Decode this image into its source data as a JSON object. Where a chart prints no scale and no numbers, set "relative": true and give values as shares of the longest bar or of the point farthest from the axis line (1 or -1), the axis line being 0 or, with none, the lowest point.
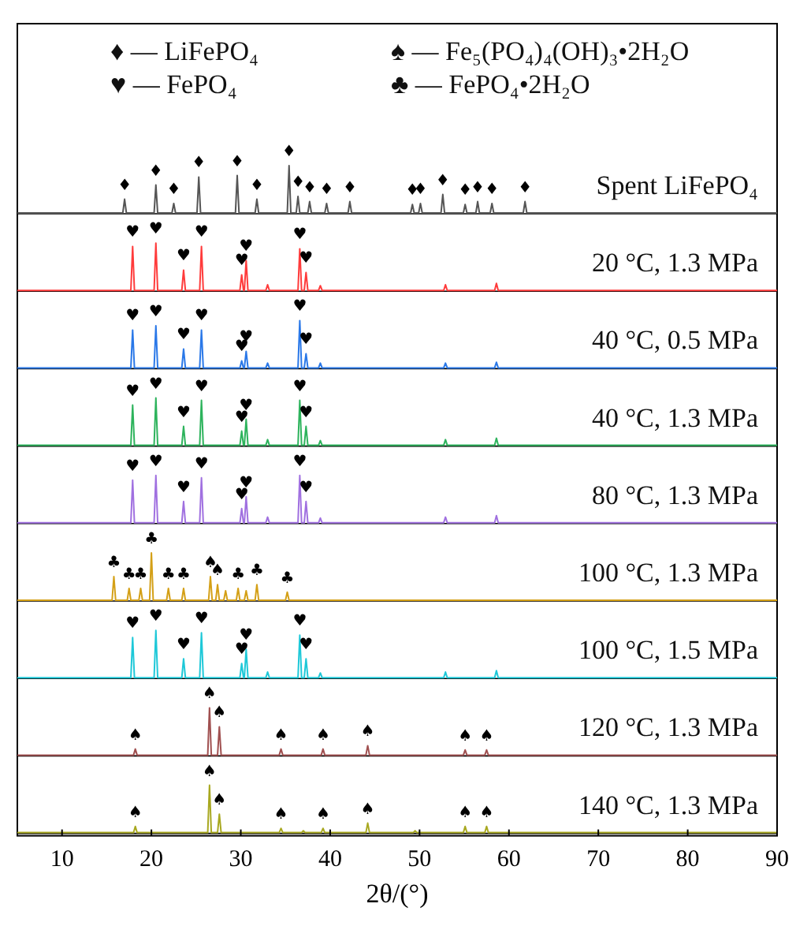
{
  "chart_data": [
    {
      "type": "line",
      "relative": true,
      "xlim": [
        5,
        90
      ],
      "tick_labels": false,
      "series": [
        {
          "name": "Spent LiFePO₄",
          "color": "#555555",
          "x": [
            5,
            16.8,
            17,
            17.2,
            20.3,
            20.5,
            20.7,
            22.3,
            22.5,
            22.7,
            25.1,
            25.3,
            25.5,
            29.4,
            29.6,
            29.8,
            31.6,
            31.8,
            32,
            35.2,
            35.4,
            35.6,
            36.2,
            36.4,
            36.6,
            37.5,
            37.7,
            37.9,
            39.4,
            39.6,
            39.8,
            42,
            42.2,
            42.4,
            49,
            49.2,
            49.4,
            49.9,
            50.1,
            50.3,
            52.4,
            52.6,
            52.8,
            54.9,
            55.1,
            55.3,
            56.3,
            56.5,
            56.7,
            57.9,
            58.1,
            58.3,
            61.6,
            61.8,
            62,
            90
          ],
          "values": [
            0,
            0,
            0.29,
            0,
            0,
            0.59,
            0,
            0,
            0.2,
            0,
            0,
            0.76,
            0,
            0,
            0.79,
            0,
            0,
            0.29,
            0,
            0,
            1,
            0,
            0,
            0.35,
            0,
            0,
            0.24,
            0,
            0,
            0.2,
            0,
            0,
            0.24,
            0,
            0,
            0.18,
            0,
            0,
            0.2,
            0,
            0,
            0.39,
            0,
            0,
            0.18,
            0,
            0,
            0.24,
            0,
            0,
            0.2,
            0,
            0,
            0.24,
            0,
            0
          ]
        }
      ],
      "annotations": [
        "♦ — LiFePO₄",
        "♠ — Fe₅(PO₄)₄(OH)₃•2H₂O",
        "♥ — FePO₄",
        "♣ — FePO₄•2H₂O",
        {
          "text": "♦",
          "x": 17,
          "y": 0.29
        },
        {
          "text": "♦",
          "x": 20.5,
          "y": 0.59
        },
        {
          "text": "♦",
          "x": 22.5,
          "y": 0.2
        },
        {
          "text": "♦",
          "x": 25.3,
          "y": 0.76
        },
        {
          "text": "♦",
          "x": 29.6,
          "y": 0.79
        },
        {
          "text": "♦",
          "x": 31.8,
          "y": 0.29
        },
        {
          "text": "♦",
          "x": 35.4,
          "y": 1
        },
        {
          "text": "♦",
          "x": 36.4,
          "y": 0.35
        },
        {
          "text": "♦",
          "x": 37.7,
          "y": 0.24
        },
        {
          "text": "♦",
          "x": 39.6,
          "y": 0.2
        },
        {
          "text": "♦",
          "x": 42.2,
          "y": 0.24
        },
        {
          "text": "♦",
          "x": 49.2,
          "y": 0.18
        },
        {
          "text": "♦",
          "x": 50.1,
          "y": 0.2
        },
        {
          "text": "♦",
          "x": 52.6,
          "y": 0.39
        },
        {
          "text": "♦",
          "x": 55.1,
          "y": 0.18
        },
        {
          "text": "♦",
          "x": 56.5,
          "y": 0.24
        },
        {
          "text": "♦",
          "x": 58.1,
          "y": 0.2
        },
        {
          "text": "♦",
          "x": 61.8,
          "y": 0.24
        }
      ]
    },
    {
      "type": "line",
      "relative": true,
      "xlim": [
        5,
        90
      ],
      "tick_labels": false,
      "series": [
        {
          "name": "20 °C, 1.3 MPa",
          "color": "#ff3b3b",
          "x": [
            5,
            17.7,
            17.9,
            18.1,
            20.3,
            20.5,
            20.7,
            23.4,
            23.6,
            23.8,
            25.4,
            25.6,
            25.8,
            29.9,
            30.1,
            30.3,
            30.4,
            30.6,
            30.8,
            32.8,
            33,
            33.2,
            36.4,
            36.6,
            36.8,
            37.1,
            37.3,
            37.5,
            38.7,
            38.9,
            39.1,
            52.7,
            52.9,
            53.1,
            58.4,
            58.6,
            58.8,
            90
          ],
          "values": [
            0,
            0,
            0.93,
            0,
            0,
            1,
            0,
            0,
            0.43,
            0,
            0,
            0.93,
            0,
            0,
            0.33,
            0,
            0,
            0.63,
            0,
            0,
            0.12,
            0,
            0,
            0.88,
            0,
            0,
            0.38,
            0,
            0,
            0.1,
            0,
            0,
            0.12,
            0,
            0,
            0.15,
            0,
            0
          ]
        }
      ],
      "annotations": [
        {
          "text": "♥",
          "x": 17.9,
          "y": 0.93
        },
        {
          "text": "♥",
          "x": 20.5,
          "y": 1
        },
        {
          "text": "♥",
          "x": 23.6,
          "y": 0.43
        },
        {
          "text": "♥",
          "x": 25.6,
          "y": 0.93
        },
        {
          "text": "♥",
          "x": 30.1,
          "y": 0.33
        },
        {
          "text": "♥",
          "x": 30.6,
          "y": 0.63
        },
        {
          "text": "♥",
          "x": 36.6,
          "y": 0.88
        },
        {
          "text": "♥",
          "x": 37.3,
          "y": 0.38
        }
      ]
    },
    {
      "type": "line",
      "relative": true,
      "xlim": [
        5,
        90
      ],
      "tick_labels": false,
      "series": [
        {
          "name": "40 °C, 0.5 MPa",
          "color": "#2a78e8",
          "x": [
            5,
            17.7,
            17.9,
            18.1,
            20.3,
            20.5,
            20.7,
            23.4,
            23.6,
            23.8,
            25.4,
            25.6,
            25.8,
            29.9,
            30.1,
            30.3,
            30.4,
            30.6,
            30.8,
            32.8,
            33,
            33.2,
            36.4,
            36.6,
            36.8,
            37.1,
            37.3,
            37.5,
            38.7,
            38.9,
            39.1,
            52.7,
            52.9,
            53.1,
            58.4,
            58.6,
            58.8,
            90
          ],
          "values": [
            0,
            0,
            0.8,
            0,
            0,
            0.89,
            0,
            0,
            0.4,
            0,
            0,
            0.8,
            0,
            0,
            0.15,
            0,
            0,
            0.35,
            0,
            0,
            0.1,
            0,
            0,
            1,
            0,
            0,
            0.3,
            0,
            0,
            0.1,
            0,
            0,
            0.1,
            0,
            0,
            0.12,
            0,
            0
          ]
        }
      ],
      "annotations": [
        {
          "text": "♥",
          "x": 17.9,
          "y": 0.8
        },
        {
          "text": "♥",
          "x": 20.5,
          "y": 0.89
        },
        {
          "text": "♥",
          "x": 23.6,
          "y": 0.4
        },
        {
          "text": "♥",
          "x": 25.6,
          "y": 0.8
        },
        {
          "text": "♥",
          "x": 30.1,
          "y": 0.15
        },
        {
          "text": "♥",
          "x": 30.6,
          "y": 0.35
        },
        {
          "text": "♥",
          "x": 36.6,
          "y": 1
        },
        {
          "text": "♥",
          "x": 37.3,
          "y": 0.3
        }
      ]
    },
    {
      "type": "line",
      "relative": true,
      "xlim": [
        5,
        90
      ],
      "tick_labels": false,
      "series": [
        {
          "name": "40 °C, 1.3 MPa",
          "color": "#2db35c",
          "x": [
            5,
            17.7,
            17.9,
            18.1,
            20.3,
            20.5,
            20.7,
            23.4,
            23.6,
            23.8,
            25.4,
            25.6,
            25.8,
            29.9,
            30.1,
            30.3,
            30.4,
            30.6,
            30.8,
            32.8,
            33,
            33.2,
            36.4,
            36.6,
            36.8,
            37.1,
            37.3,
            37.5,
            38.7,
            38.9,
            39.1,
            52.7,
            52.9,
            53.1,
            58.4,
            58.6,
            58.8,
            90
          ],
          "values": [
            0,
            0,
            0.85,
            0,
            0,
            1,
            0,
            0,
            0.4,
            0,
            0,
            0.95,
            0,
            0,
            0.3,
            0,
            0,
            0.55,
            0,
            0,
            0.12,
            0,
            0,
            0.95,
            0,
            0,
            0.4,
            0,
            0,
            0.1,
            0,
            0,
            0.12,
            0,
            0,
            0.15,
            0,
            0
          ]
        }
      ],
      "annotations": [
        {
          "text": "♥",
          "x": 17.9,
          "y": 0.85
        },
        {
          "text": "♥",
          "x": 20.5,
          "y": 1
        },
        {
          "text": "♥",
          "x": 23.6,
          "y": 0.4
        },
        {
          "text": "♥",
          "x": 25.6,
          "y": 0.95
        },
        {
          "text": "♥",
          "x": 30.1,
          "y": 0.3
        },
        {
          "text": "♥",
          "x": 30.6,
          "y": 0.55
        },
        {
          "text": "♥",
          "x": 36.6,
          "y": 0.95
        },
        {
          "text": "♥",
          "x": 37.3,
          "y": 0.4
        }
      ]
    },
    {
      "type": "line",
      "relative": true,
      "xlim": [
        5,
        90
      ],
      "tick_labels": false,
      "series": [
        {
          "name": "80 °C, 1.3 MPa",
          "color": "#a070e0",
          "x": [
            5,
            17.7,
            17.9,
            18.1,
            20.3,
            20.5,
            20.7,
            23.4,
            23.6,
            23.8,
            25.4,
            25.6,
            25.8,
            29.9,
            30.1,
            30.3,
            30.4,
            30.6,
            30.8,
            32.8,
            33,
            33.2,
            36.4,
            36.6,
            36.8,
            37.1,
            37.3,
            37.5,
            38.7,
            38.9,
            39.1,
            52.7,
            52.9,
            53.1,
            58.4,
            58.6,
            58.8,
            90
          ],
          "values": [
            0,
            0,
            0.9,
            0,
            0,
            1,
            0,
            0,
            0.45,
            0,
            0,
            0.95,
            0,
            0,
            0.3,
            0,
            0,
            0.55,
            0,
            0,
            0.12,
            0,
            0,
            1,
            0,
            0,
            0.45,
            0,
            0,
            0.1,
            0,
            0,
            0.12,
            0,
            0,
            0.15,
            0,
            0
          ]
        }
      ],
      "annotations": [
        {
          "text": "♥",
          "x": 17.9,
          "y": 0.9
        },
        {
          "text": "♥",
          "x": 20.5,
          "y": 1
        },
        {
          "text": "♥",
          "x": 23.6,
          "y": 0.45
        },
        {
          "text": "♥",
          "x": 25.6,
          "y": 0.95
        },
        {
          "text": "♥",
          "x": 30.1,
          "y": 0.3
        },
        {
          "text": "♥",
          "x": 30.6,
          "y": 0.55
        },
        {
          "text": "♥",
          "x": 36.6,
          "y": 1
        },
        {
          "text": "♥",
          "x": 37.3,
          "y": 0.45
        }
      ]
    },
    {
      "type": "line",
      "relative": true,
      "xlim": [
        5,
        90
      ],
      "tick_labels": false,
      "series": [
        {
          "name": "100 °C, 1.3 MPa",
          "color": "#d4a017",
          "x": [
            5,
            15.6,
            15.8,
            16,
            17.3,
            17.5,
            17.7,
            18.6,
            18.8,
            19,
            19.8,
            20,
            20.2,
            21.7,
            21.9,
            22.1,
            23.4,
            23.6,
            23.8,
            26.4,
            26.6,
            26.8,
            27.2,
            27.4,
            27.6,
            28.1,
            28.3,
            28.5,
            29.5,
            29.7,
            29.9,
            30.4,
            30.6,
            30.8,
            31.6,
            31.8,
            32,
            35,
            35.2,
            35.4,
            90
          ],
          "values": [
            0,
            0,
            0.5,
            0,
            0,
            0.25,
            0,
            0,
            0.25,
            0,
            0,
            1,
            0,
            0,
            0.25,
            0,
            0,
            0.25,
            0,
            0,
            0.5,
            0,
            0,
            0.33,
            0,
            0,
            0.2,
            0,
            0,
            0.25,
            0,
            0,
            0.2,
            0,
            0,
            0.33,
            0,
            0,
            0.17,
            0,
            0
          ]
        }
      ],
      "annotations": [
        {
          "text": "♣",
          "x": 15.8,
          "y": 0.5
        },
        {
          "text": "♣",
          "x": 17.5,
          "y": 0.25
        },
        {
          "text": "♣",
          "x": 18.8,
          "y": 0.25
        },
        {
          "text": "♣",
          "x": 20,
          "y": 1
        },
        {
          "text": "♣",
          "x": 21.9,
          "y": 0.25
        },
        {
          "text": "♣",
          "x": 23.6,
          "y": 0.25
        },
        {
          "text": "♠",
          "x": 26.6,
          "y": 0.5
        },
        {
          "text": "♠",
          "x": 27.4,
          "y": 0.33
        },
        {
          "text": "♣",
          "x": 29.7,
          "y": 0.25
        },
        {
          "text": "♣",
          "x": 31.8,
          "y": 0.33
        },
        {
          "text": "♣",
          "x": 35.2,
          "y": 0.17
        }
      ]
    },
    {
      "type": "line",
      "relative": true,
      "xlim": [
        5,
        90
      ],
      "tick_labels": false,
      "series": [
        {
          "name": "100 °C, 1.5 MPa",
          "color": "#1ec8d8",
          "x": [
            5,
            17.7,
            17.9,
            18.1,
            20.3,
            20.5,
            20.7,
            23.4,
            23.6,
            23.8,
            25.4,
            25.6,
            25.8,
            29.9,
            30.1,
            30.3,
            30.4,
            30.6,
            30.8,
            32.8,
            33,
            33.2,
            36.4,
            36.6,
            36.8,
            37.1,
            37.3,
            37.5,
            38.7,
            38.9,
            39.1,
            52.7,
            52.9,
            53.1,
            58.4,
            58.6,
            58.8,
            90
          ],
          "values": [
            0,
            0,
            0.85,
            0,
            0,
            1,
            0,
            0,
            0.4,
            0,
            0,
            0.95,
            0,
            0,
            0.3,
            0,
            0,
            0.6,
            0,
            0,
            0.12,
            0,
            0,
            0.9,
            0,
            0,
            0.4,
            0,
            0,
            0.1,
            0,
            0,
            0.12,
            0,
            0,
            0.15,
            0,
            0
          ]
        }
      ],
      "annotations": [
        {
          "text": "♥",
          "x": 17.9,
          "y": 0.85
        },
        {
          "text": "♥",
          "x": 20.5,
          "y": 1
        },
        {
          "text": "♥",
          "x": 23.6,
          "y": 0.4
        },
        {
          "text": "♥",
          "x": 25.6,
          "y": 0.95
        },
        {
          "text": "♥",
          "x": 30.1,
          "y": 0.3
        },
        {
          "text": "♥",
          "x": 30.6,
          "y": 0.6
        },
        {
          "text": "♥",
          "x": 36.6,
          "y": 0.9
        },
        {
          "text": "♥",
          "x": 37.3,
          "y": 0.4
        }
      ]
    },
    {
      "type": "line",
      "relative": true,
      "xlim": [
        5,
        90
      ],
      "tick_labels": false,
      "series": [
        {
          "name": "120 °C, 1.3 MPa",
          "color": "#a05050",
          "x": [
            5,
            18,
            18.2,
            18.4,
            26.3,
            26.5,
            26.7,
            27.4,
            27.6,
            27.8,
            34.3,
            34.5,
            34.7,
            39,
            39.2,
            39.4,
            44,
            44.2,
            44.4,
            54.9,
            55.1,
            55.3,
            57.3,
            57.5,
            57.7,
            90
          ],
          "values": [
            0,
            0,
            0.13,
            0,
            0,
            1,
            0,
            0,
            0.6,
            0,
            0,
            0.13,
            0,
            0,
            0.13,
            0,
            0,
            0.2,
            0,
            0,
            0.11,
            0,
            0,
            0.11,
            0,
            0
          ]
        }
      ],
      "annotations": [
        {
          "text": "♠",
          "x": 18.2,
          "y": 0.13
        },
        {
          "text": "♠",
          "x": 26.5,
          "y": 1
        },
        {
          "text": "♠",
          "x": 27.6,
          "y": 0.6
        },
        {
          "text": "♠",
          "x": 34.5,
          "y": 0.13
        },
        {
          "text": "♠",
          "x": 39.2,
          "y": 0.13
        },
        {
          "text": "♠",
          "x": 44.2,
          "y": 0.2
        },
        {
          "text": "♠",
          "x": 55.1,
          "y": 0.11
        },
        {
          "text": "♠",
          "x": 57.5,
          "y": 0.11
        }
      ]
    },
    {
      "type": "line",
      "relative": true,
      "xlim": [
        5,
        90
      ],
      "xticks": [
        10,
        20,
        30,
        40,
        50,
        60,
        70,
        80,
        90
      ],
      "tick_labels": "x",
      "xlabel": "2θ/(°)",
      "series": [
        {
          "name": "140 °C, 1.3 MPa",
          "color": "#a8a820",
          "x": [
            5,
            18,
            18.2,
            18.4,
            26.3,
            26.5,
            26.7,
            27.4,
            27.6,
            27.8,
            34.3,
            34.5,
            34.7,
            36.8,
            37,
            37.2,
            39,
            39.2,
            39.4,
            44,
            44.2,
            44.4,
            49.3,
            49.5,
            49.7,
            54.9,
            55.1,
            55.3,
            57.3,
            57.5,
            57.7,
            90
          ],
          "values": [
            0,
            0,
            0.13,
            0,
            0,
            1,
            0,
            0,
            0.39,
            0,
            0,
            0.09,
            0,
            0,
            0.04,
            0,
            0,
            0.09,
            0,
            0,
            0.2,
            0,
            0,
            0.04,
            0,
            0,
            0.13,
            0,
            0,
            0.13,
            0,
            0
          ]
        }
      ],
      "annotations": [
        {
          "text": "♠",
          "x": 18.2,
          "y": 0.13
        },
        {
          "text": "♠",
          "x": 26.5,
          "y": 1
        },
        {
          "text": "♠",
          "x": 27.6,
          "y": 0.39
        },
        {
          "text": "♠",
          "x": 34.5,
          "y": 0.09
        },
        {
          "text": "♠",
          "x": 39.2,
          "y": 0.09
        },
        {
          "text": "♠",
          "x": 44.2,
          "y": 0.2
        },
        {
          "text": "♠",
          "x": 55.1,
          "y": 0.13
        },
        {
          "text": "♠",
          "x": 57.5,
          "y": 0.13
        }
      ]
    }
  ]
}
